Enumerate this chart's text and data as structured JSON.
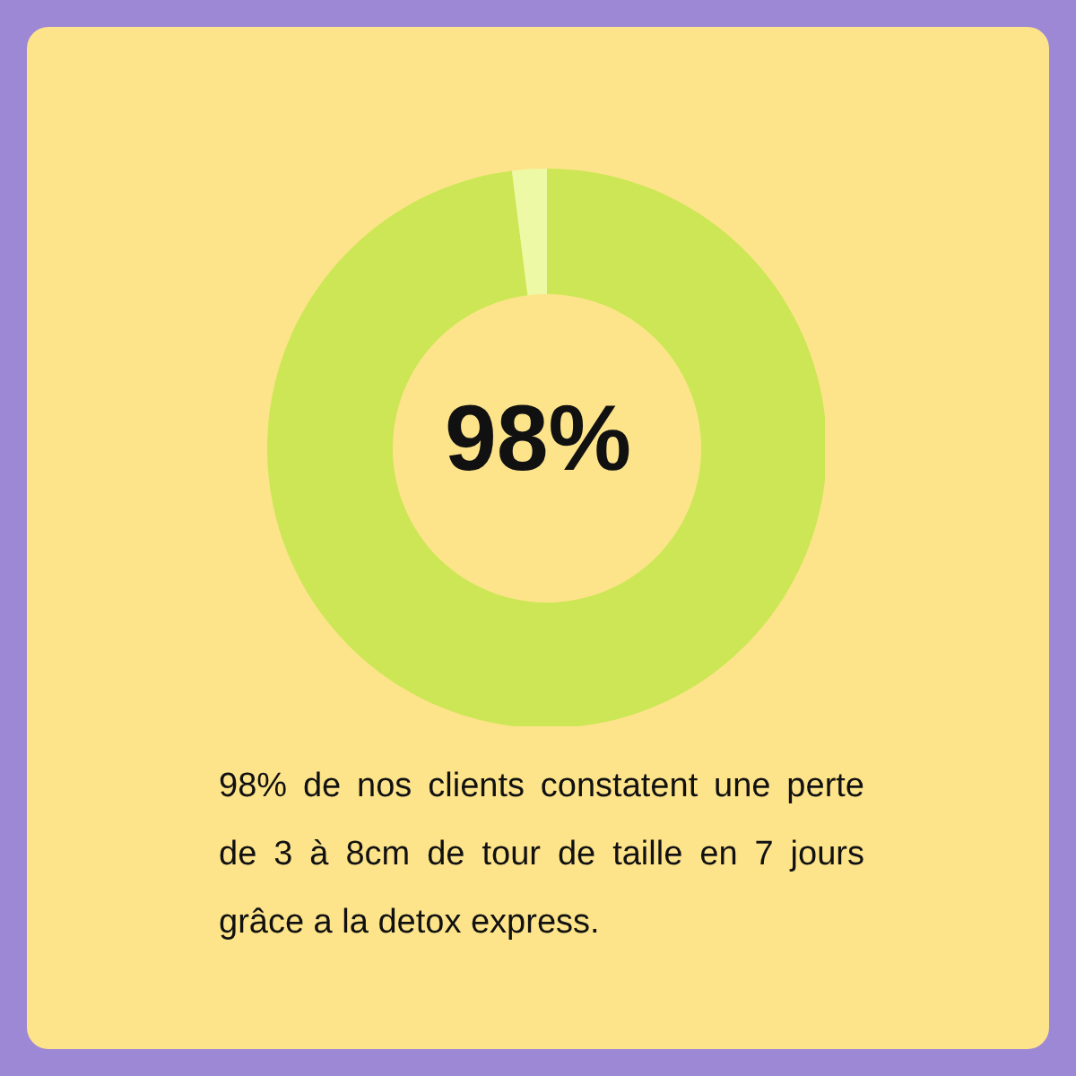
{
  "chart_data": {
    "type": "donut",
    "categories": [
      null,
      null
    ],
    "values": [
      98,
      2
    ],
    "colors": [
      "#cde655",
      "#eef9a6"
    ],
    "value_labels": [
      "98%",
      null
    ],
    "annotations": [
      "98% de nos clients constatent une perte de 3 à 8cm de tour de taille en 7 jours grâce a la detox express."
    ]
  }
}
